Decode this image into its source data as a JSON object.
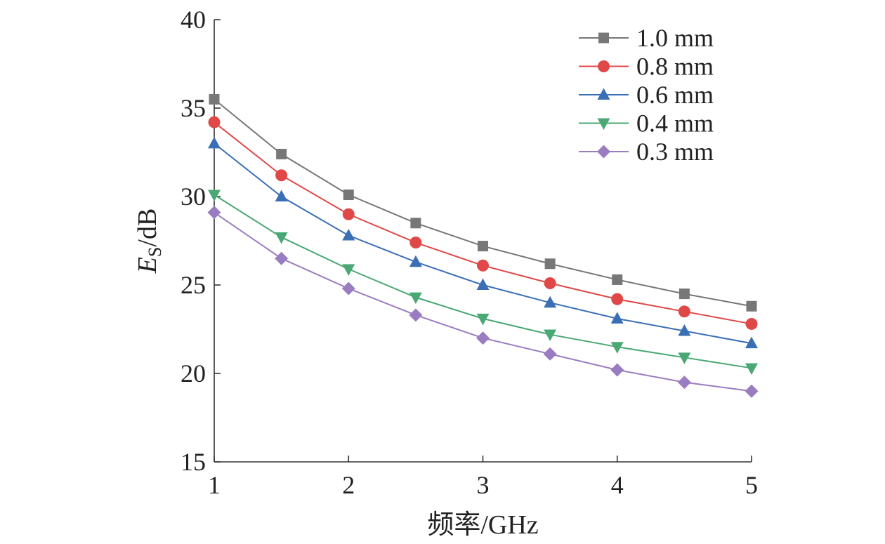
{
  "chart_data": {
    "type": "line",
    "title": "",
    "xlabel": "频率/GHz",
    "ylabel": {
      "main": "E",
      "sub": "S",
      "unit": "/dB"
    },
    "xlim": [
      1,
      5
    ],
    "ylim": [
      15,
      40
    ],
    "x_ticks": [
      1,
      2,
      3,
      4,
      5
    ],
    "y_ticks": [
      15,
      20,
      25,
      30,
      35,
      40
    ],
    "grid": false,
    "legend_position": "top-right",
    "x": [
      1,
      1.5,
      2,
      2.5,
      3,
      3.5,
      4,
      4.5,
      5
    ],
    "series": [
      {
        "name": "1.0 mm",
        "color": "#777777",
        "marker": "square",
        "values": [
          35.5,
          32.4,
          30.1,
          28.5,
          27.2,
          26.2,
          25.3,
          24.5,
          23.8
        ]
      },
      {
        "name": "0.8 mm",
        "color": "#e04848",
        "marker": "circle",
        "values": [
          34.2,
          31.2,
          29.0,
          27.4,
          26.1,
          25.1,
          24.2,
          23.5,
          22.8
        ]
      },
      {
        "name": "0.6 mm",
        "color": "#3a6fb5",
        "marker": "triangle-up",
        "values": [
          33.0,
          30.0,
          27.8,
          26.3,
          25.0,
          24.0,
          23.1,
          22.4,
          21.7
        ]
      },
      {
        "name": "0.4 mm",
        "color": "#4aa874",
        "marker": "triangle-down",
        "values": [
          30.1,
          27.7,
          25.9,
          24.3,
          23.1,
          22.2,
          21.5,
          20.9,
          20.3
        ]
      },
      {
        "name": "0.3 mm",
        "color": "#9a7cc0",
        "marker": "diamond",
        "values": [
          29.1,
          26.5,
          24.8,
          23.3,
          22.0,
          21.1,
          20.2,
          19.5,
          19.0
        ]
      }
    ]
  }
}
